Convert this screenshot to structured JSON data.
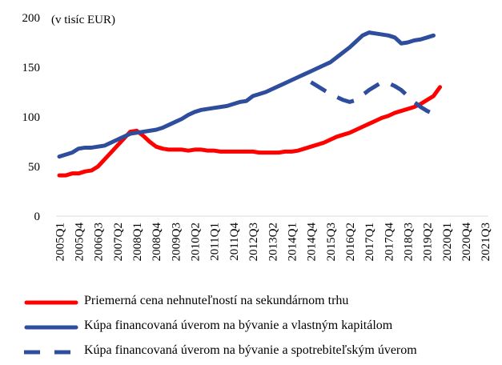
{
  "chart_data": {
    "type": "line",
    "title": "",
    "ylabel": "(v tisíc EUR)",
    "xlabel": "",
    "ylim": [
      0,
      200
    ],
    "yticks": [
      0,
      50,
      100,
      150,
      200
    ],
    "grid": false,
    "legend_position": "bottom",
    "x_tick_labels": [
      "2005Q1",
      "2005Q4",
      "2006Q3",
      "2007Q2",
      "2008Q1",
      "2008Q4",
      "2009Q3",
      "2010Q2",
      "2011Q1",
      "2011Q4",
      "2012Q3",
      "2013Q2",
      "2014Q1",
      "2014Q4",
      "2015Q3",
      "2016Q2",
      "2017Q1",
      "2017Q4",
      "2018Q3",
      "2019Q2",
      "2020Q1",
      "2020Q4",
      "2021Q3"
    ],
    "x_start": "2005Q1",
    "series": [
      {
        "name": "Priemerná cena nehnuteľností na sekundárnom trhu",
        "color": "#ff0000",
        "style": "solid",
        "start": "2005Q1",
        "values": [
          41,
          41,
          43,
          43,
          45,
          46,
          50,
          57,
          64,
          71,
          78,
          85,
          86,
          81,
          75,
          70,
          68,
          67,
          67,
          67,
          66,
          67,
          67,
          66,
          66,
          65,
          65,
          65,
          65,
          65,
          65,
          64,
          64,
          64,
          64,
          65,
          65,
          66,
          68,
          70,
          72,
          74,
          77,
          80,
          82,
          84,
          87,
          90,
          93,
          96,
          99,
          101,
          104,
          106,
          108,
          110,
          113,
          117,
          121,
          130
        ]
      },
      {
        "name": "Kúpa financovaná úverom na bývanie a vlastným kapitálom",
        "color": "#2e4d9c",
        "style": "solid",
        "start": "2005Q1",
        "values": [
          60,
          62,
          64,
          68,
          69,
          69,
          70,
          71,
          74,
          77,
          80,
          83,
          84,
          85,
          86,
          87,
          89,
          92,
          95,
          98,
          102,
          105,
          107,
          108,
          109,
          110,
          111,
          113,
          115,
          116,
          121,
          123,
          125,
          128,
          131,
          134,
          137,
          140,
          143,
          146,
          149,
          152,
          155,
          160,
          165,
          170,
          176,
          182,
          185,
          184,
          183,
          182,
          180,
          174,
          175,
          177,
          178,
          180,
          182
        ]
      },
      {
        "name": "Kúpa financovaná úverom na bývanie a spotrebiteľským úverom",
        "color": "#2e4d9c",
        "style": "dashed",
        "start": "2014Q4",
        "values": [
          135,
          131,
          127,
          123,
          120,
          117,
          115,
          117,
          122,
          127,
          131,
          135,
          134,
          131,
          127,
          121,
          115,
          110,
          106,
          103,
          101
        ]
      }
    ]
  }
}
